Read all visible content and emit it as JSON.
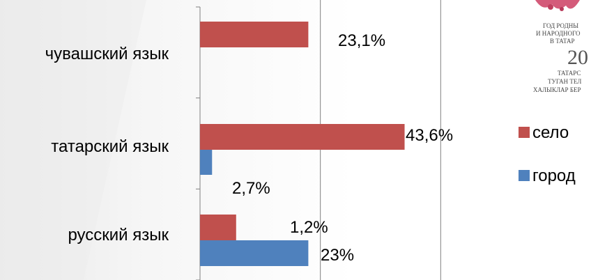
{
  "logo": {
    "lines": [
      "ГОД РОДНЫ",
      "И НАРОДНОГО",
      "В ТАТАР",
      "20",
      "ТАТАРС",
      "ТУГАН ТЕЛ",
      "ХАЛЫКЛАР БЕР"
    ]
  },
  "chart_data": {
    "type": "bar",
    "orientation": "horizontal",
    "title": "",
    "xlabel": "",
    "ylabel": "",
    "xlim": [
      0,
      150
    ],
    "grid": true,
    "legend_position": "right",
    "categories": [
      "чувашский язык",
      "татарский язык",
      "русский язык"
    ],
    "series": [
      {
        "name": "село",
        "color": "#c0504d",
        "values": [
          45,
          85,
          15
        ],
        "labels": [
          "23,1%",
          "43,6%",
          "1,2%"
        ]
      },
      {
        "name": "город",
        "color": "#4f81bd",
        "values": [
          null,
          5,
          45
        ],
        "labels": [
          "",
          "2,7%",
          "23%"
        ]
      }
    ]
  }
}
